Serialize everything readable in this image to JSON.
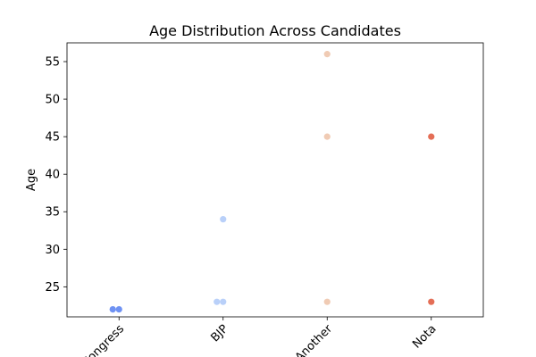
{
  "chart_data": {
    "type": "scatter",
    "title": "Age Distribution Across Candidates",
    "xlabel": "",
    "ylabel": "Age",
    "categories": [
      "Congress",
      "BJP",
      "Another",
      "Nota"
    ],
    "category_colors": [
      "#6f92f3",
      "#b9d0f9",
      "#f0cbb4",
      "#e46e56"
    ],
    "ylim": [
      21,
      57.5
    ],
    "yticks": [
      25,
      30,
      35,
      40,
      45,
      50,
      55
    ],
    "points": [
      {
        "category": "Congress",
        "age": 22
      },
      {
        "category": "Congress",
        "age": 22
      },
      {
        "category": "BJP",
        "age": 23
      },
      {
        "category": "BJP",
        "age": 23
      },
      {
        "category": "BJP",
        "age": 34
      },
      {
        "category": "Another",
        "age": 23
      },
      {
        "category": "Another",
        "age": 45
      },
      {
        "category": "Another",
        "age": 56
      },
      {
        "category": "Nota",
        "age": 23
      },
      {
        "category": "Nota",
        "age": 45
      }
    ],
    "grid": false,
    "legend": "none"
  }
}
